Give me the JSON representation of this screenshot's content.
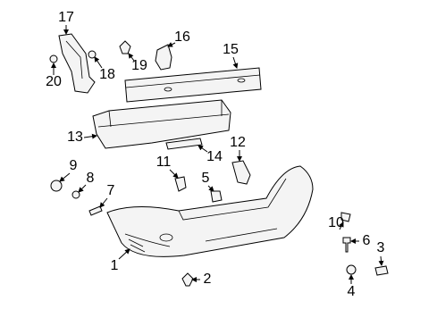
{
  "callouts": [
    "1",
    "2",
    "3",
    "4",
    "5",
    "6",
    "7",
    "8",
    "9",
    "10",
    "11",
    "12",
    "13",
    "14",
    "15",
    "16",
    "17",
    "18",
    "19",
    "20"
  ]
}
